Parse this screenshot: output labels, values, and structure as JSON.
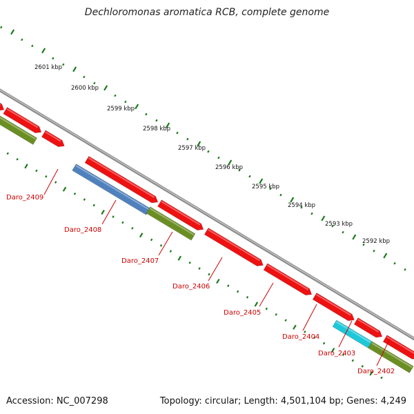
{
  "title": "Dechloromonas aromatica RCB, complete genome",
  "footer": {
    "accession": "Accession: NC_007298",
    "topology": "Topology: circular; Length: 4,501,104 bp; Genes: 4,249"
  },
  "colors": {
    "backbone": "#8c8c8c",
    "tick": "#1a7a1a",
    "label": "#cc0000",
    "red": "#ee1111",
    "olive": "#6b8e23",
    "steel": "#4f81bd",
    "cyan": "#1ec8d8",
    "blue": "#1010ee"
  },
  "kbp_labels": [
    "2601 kbp",
    "2600 kbp",
    "2599 kbp",
    "2598 kbp",
    "2597 kbp",
    "2596 kbp",
    "2595 kbp",
    "2594 kbp",
    "2593 kbp",
    "2592 kbp"
  ],
  "gene_labels": [
    "Daro_2409",
    "Daro_2408",
    "Daro_2407",
    "Daro_2406",
    "Daro_2405",
    "Daro_2404",
    "Daro_2403",
    "Daro_2402"
  ]
}
